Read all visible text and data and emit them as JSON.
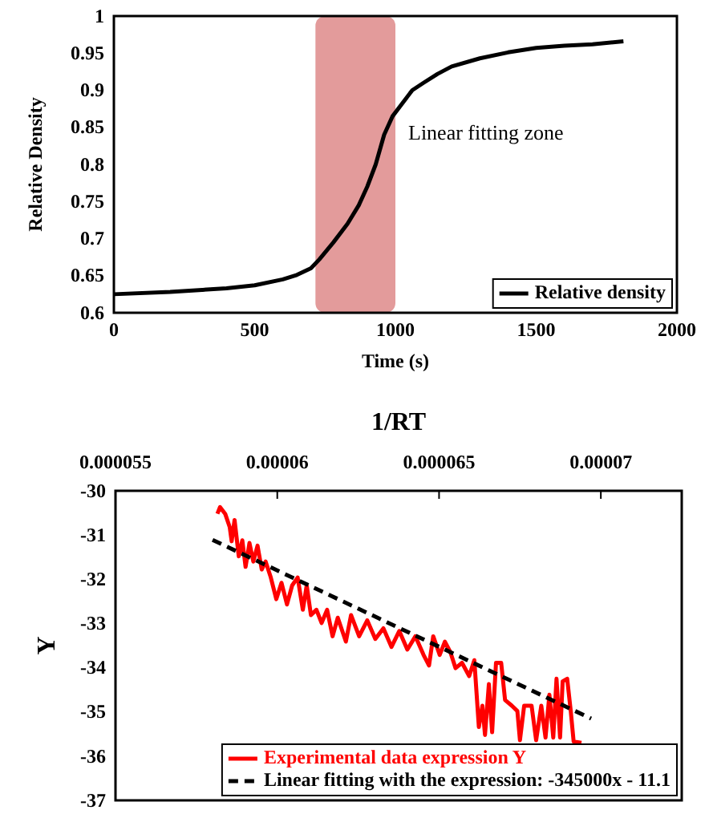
{
  "chart_data": [
    {
      "type": "line",
      "xlabel": "Time (s)",
      "ylabel": "Relative Density",
      "xlim": [
        0,
        2000
      ],
      "xticks": [
        0,
        500,
        1000,
        1500,
        2000
      ],
      "ylim": [
        0.6,
        1
      ],
      "yticks": [
        0.6,
        0.65,
        0.7,
        0.75,
        0.8,
        0.85,
        0.9,
        0.95,
        1
      ],
      "grid": false,
      "legend": "bottom right",
      "marker": "none",
      "bands": [
        {
          "axis": "x",
          "from": 716,
          "to": 1000,
          "color": "#e09090",
          "label": "Linear fitting zone"
        }
      ],
      "series": [
        {
          "name": "Relative density",
          "color": "#000000",
          "line_style": "solid",
          "x": [
            0,
            200,
            400,
            500,
            600,
            650,
            700,
            730,
            780,
            830,
            870,
            900,
            930,
            960,
            990,
            1020,
            1060,
            1100,
            1150,
            1200,
            1300,
            1400,
            1500,
            1600,
            1700,
            1810
          ],
          "values": [
            0.625,
            0.628,
            0.633,
            0.637,
            0.645,
            0.651,
            0.66,
            0.672,
            0.695,
            0.72,
            0.745,
            0.77,
            0.8,
            0.84,
            0.865,
            0.88,
            0.9,
            0.91,
            0.922,
            0.932,
            0.943,
            0.951,
            0.957,
            0.96,
            0.962,
            0.966
          ]
        }
      ]
    },
    {
      "type": "line",
      "xlabel": "1/RT",
      "ylabel": "Y",
      "xlim": [
        5.5e-05,
        7.25e-05
      ],
      "xticks": [
        {
          "value": 5.5e-05,
          "label": "0.000055"
        },
        {
          "value": 6e-05,
          "label": "0.00006"
        },
        {
          "value": 6.5e-05,
          "label": "0.000065"
        },
        {
          "value": 7e-05,
          "label": "0.00007"
        }
      ],
      "ylim": [
        -37,
        -30
      ],
      "yticks": [
        -37,
        -36,
        -35,
        -34,
        -33,
        -32,
        -31,
        -30
      ],
      "grid": false,
      "legend": "bottom right",
      "marker": "none",
      "series": [
        {
          "name": "Experimental data expression Y",
          "color": "#ff0000",
          "line_style": "solid",
          "x": [
            5.815e-05,
            5.823e-05,
            5.839e-05,
            5.853e-05,
            5.859e-05,
            5.868e-05,
            5.881e-05,
            5.892e-05,
            5.902e-05,
            5.914e-05,
            5.926e-05,
            5.939e-05,
            5.952e-05,
            5.964e-05,
            5.98e-05,
            5.997e-05,
            6.013e-05,
            6.03e-05,
            6.046e-05,
            6.063e-05,
            6.079e-05,
            6.091e-05,
            6.104e-05,
            6.121e-05,
            6.137e-05,
            6.154e-05,
            6.171e-05,
            6.187e-05,
            6.212e-05,
            6.228e-05,
            6.253e-05,
            6.278e-05,
            6.303e-05,
            6.328e-05,
            6.353e-05,
            6.377e-05,
            6.402e-05,
            6.427e-05,
            6.452e-05,
            6.469e-05,
            6.482e-05,
            6.502e-05,
            6.518e-05,
            6.535e-05,
            6.551e-05,
            6.571e-05,
            6.593e-05,
            6.609e-05,
            6.623e-05,
            6.634e-05,
            6.642e-05,
            6.654e-05,
            6.664e-05,
            6.676e-05,
            6.692e-05,
            6.704e-05,
            6.725e-05,
            6.742e-05,
            6.75e-05,
            6.763e-05,
            6.786e-05,
            6.8e-05,
            6.816e-05,
            6.829e-05,
            6.841e-05,
            6.853e-05,
            6.863e-05,
            6.874e-05,
            6.882e-05,
            6.896e-05,
            6.907e-05,
            6.916e-05,
            6.94e-05
          ],
          "values": [
            -30.52,
            -30.37,
            -30.52,
            -30.82,
            -31.14,
            -30.66,
            -31.48,
            -31.12,
            -31.72,
            -31.18,
            -31.6,
            -31.24,
            -31.78,
            -31.6,
            -31.96,
            -32.45,
            -32.08,
            -32.57,
            -32.14,
            -31.96,
            -32.69,
            -32.14,
            -32.81,
            -32.69,
            -32.99,
            -32.69,
            -33.29,
            -32.87,
            -33.41,
            -32.81,
            -33.29,
            -32.93,
            -33.35,
            -33.11,
            -33.53,
            -33.17,
            -33.59,
            -33.29,
            -33.71,
            -33.95,
            -33.29,
            -33.71,
            -33.41,
            -33.65,
            -34.01,
            -33.89,
            -34.19,
            -33.83,
            -35.34,
            -34.86,
            -35.52,
            -34.37,
            -35.46,
            -33.89,
            -33.89,
            -34.73,
            -34.86,
            -34.98,
            -35.64,
            -34.86,
            -34.86,
            -35.64,
            -34.86,
            -35.58,
            -34.61,
            -35.58,
            -34.25,
            -35.58,
            -34.31,
            -34.25,
            -34.98,
            -35.67,
            -35.7
          ]
        },
        {
          "name": "Linear fitting with the expression: -345000x - 11.1",
          "color": "#000000",
          "line_style": "dashed",
          "x": [
            5.8e-05,
            6.97e-05
          ],
          "values": [
            -31.11,
            -35.15
          ]
        }
      ]
    }
  ]
}
